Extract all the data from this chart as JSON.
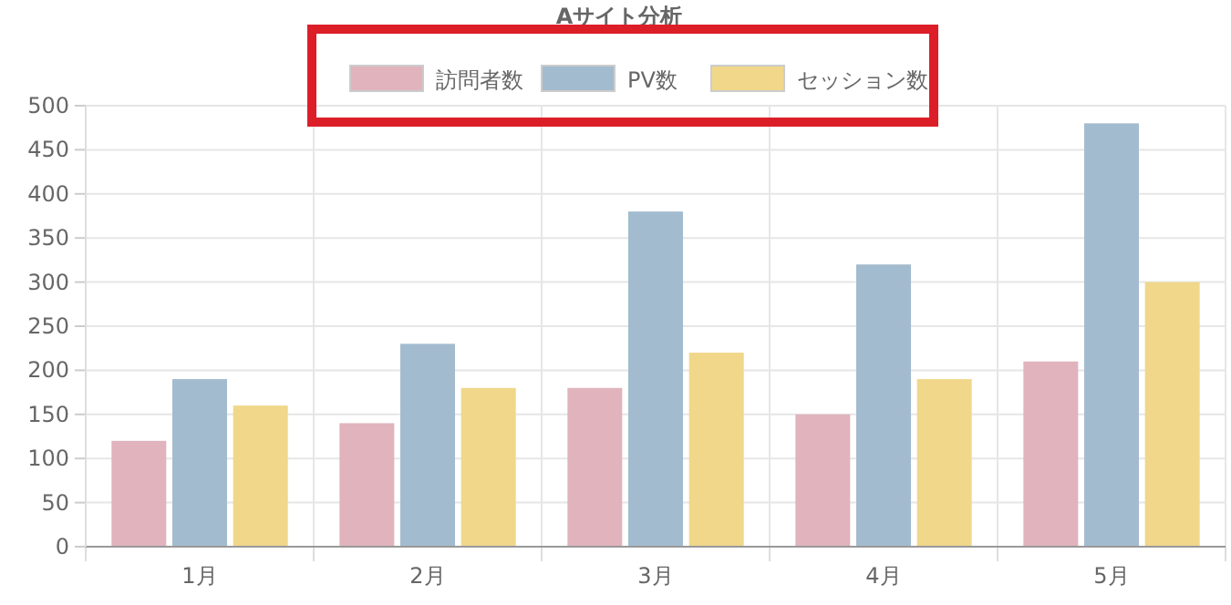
{
  "chart_data": {
    "type": "bar",
    "title": "Aサイト分析",
    "categories": [
      "1月",
      "2月",
      "3月",
      "4月",
      "5月"
    ],
    "series": [
      {
        "name": "訪問者数",
        "color": "#e0b3bd",
        "values": [
          120,
          140,
          180,
          150,
          210
        ]
      },
      {
        "name": "PV数",
        "color": "#a3bbce",
        "values": [
          190,
          230,
          380,
          320,
          480
        ]
      },
      {
        "name": "セッション数",
        "color": "#f0d78a",
        "values": [
          160,
          180,
          220,
          190,
          300
        ]
      }
    ],
    "ylim": [
      0,
      500
    ],
    "yticks": [
      0,
      50,
      100,
      150,
      200,
      250,
      300,
      350,
      400,
      450,
      500
    ],
    "grid": true,
    "legend": "top"
  }
}
